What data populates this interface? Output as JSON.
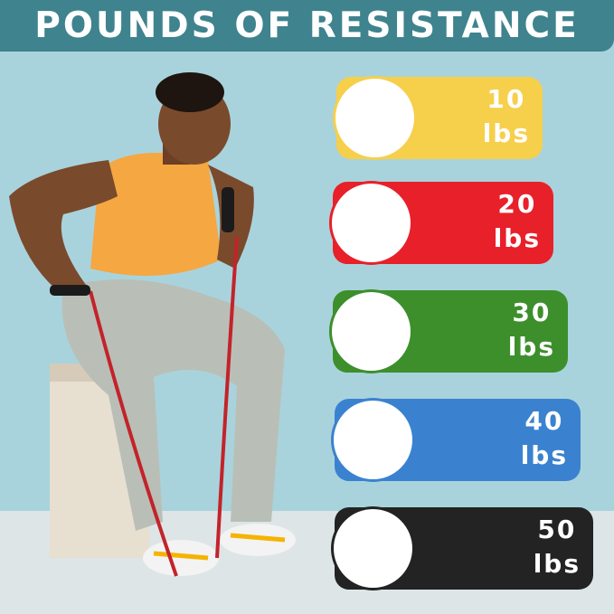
{
  "title": "POUNDS OF RESISTANCE",
  "bands": [
    {
      "value": "10",
      "unit": "lbs",
      "color": "#f6cf4b"
    },
    {
      "value": "20",
      "unit": "lbs",
      "color": "#e8202a"
    },
    {
      "value": "30",
      "unit": "lbs",
      "color": "#3d8f2c"
    },
    {
      "value": "40",
      "unit": "lbs",
      "color": "#3a82d0"
    },
    {
      "value": "50",
      "unit": "lbs",
      "color": "#232323"
    }
  ],
  "colors": {
    "banner": "#3e838d",
    "background": "#a9d3dc"
  }
}
